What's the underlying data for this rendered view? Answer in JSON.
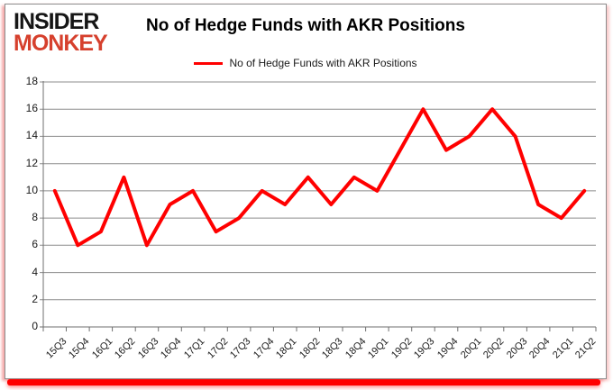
{
  "logo": {
    "line1": "INSIDER",
    "line2": "MONKEY",
    "accent_color": "#d6402d"
  },
  "header": {
    "title": "No of Hedge Funds with AKR Positions"
  },
  "legend": {
    "label": "No of Hedge Funds with AKR Positions",
    "line_color": "#ff0000"
  },
  "chart_data": {
    "type": "line",
    "title": "No of Hedge Funds with AKR Positions",
    "categories": [
      "15Q3",
      "15Q4",
      "16Q1",
      "16Q2",
      "16Q3",
      "16Q4",
      "17Q1",
      "17Q2",
      "17Q3",
      "17Q4",
      "18Q1",
      "18Q2",
      "18Q3",
      "18Q4",
      "19Q1",
      "19Q2",
      "19Q3",
      "19Q4",
      "20Q1",
      "20Q2",
      "20Q3",
      "20Q4",
      "21Q1",
      "21Q2"
    ],
    "series": [
      {
        "name": "No of Hedge Funds with AKR Positions",
        "color": "#ff0000",
        "values": [
          10,
          6,
          7,
          11,
          6,
          9,
          10,
          7,
          8,
          10,
          9,
          11,
          9,
          11,
          10,
          13,
          16,
          13,
          14,
          16,
          14,
          9,
          8,
          10
        ]
      }
    ],
    "xlabel": "",
    "ylabel": "",
    "ylim": [
      0,
      18
    ],
    "ytick_step": 2,
    "yticks": [
      0,
      2,
      4,
      6,
      8,
      10,
      12,
      14,
      16,
      18
    ],
    "grid": true,
    "legend_position": "top",
    "gridline_color": "#8c8c8c",
    "axis_color": "#6f6f6f",
    "label_color": "#1a1a1a"
  }
}
